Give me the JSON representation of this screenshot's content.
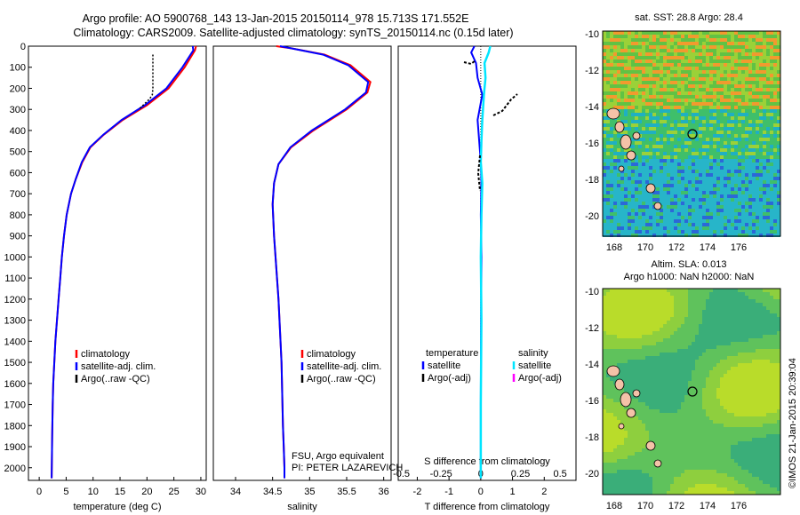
{
  "header": {
    "line1": "Argo profile: AO 5900768_143 13-Jan-2015 20150114_978 15.713S 171.552E",
    "line2": "Climatology: CARS2009. Satellite-adjusted climatology: synTS_20150114.nc (0.15d later)"
  },
  "depth_ticks": [
    "0",
    "100",
    "200",
    "300",
    "400",
    "500",
    "600",
    "700",
    "800",
    "900",
    "1000",
    "1100",
    "1200",
    "1300",
    "1400",
    "1500",
    "1600",
    "1700",
    "1800",
    "1900",
    "2000"
  ],
  "colors": {
    "climatology": "#ff0000",
    "satellite": "#0000ff",
    "argo": "#000000",
    "sal_satellite": "#00e5ff",
    "sal_argo": "#ff00ff"
  },
  "temp_panel": {
    "xlabel": "temperature (deg C)",
    "xticks": [
      "0",
      "5",
      "10",
      "15",
      "20",
      "25",
      "30"
    ],
    "legend": [
      "climatology",
      "satellite-adj. clim.",
      "Argo(..raw -QC)"
    ]
  },
  "sal_panel": {
    "xlabel": "salinity",
    "xticks": [
      "34",
      "34.5",
      "35",
      "35.5",
      "36"
    ],
    "legend": [
      "climatology",
      "satellite-adj. clim.",
      "Argo(..raw -QC)"
    ],
    "note1": "FSU, Argo equivalent",
    "note2": "PI: PETER LAZAREVICH"
  },
  "diff_panel": {
    "xlabel": "T difference from climatology",
    "s_label": "S difference from climatology",
    "xticks_t": [
      "-2",
      "-1",
      "0",
      "1",
      "2"
    ],
    "xticks_s": [
      "-0.5",
      "-0.25",
      "0",
      "0.25",
      "0.5"
    ],
    "legend_t_head": "temperature",
    "legend_t": [
      "satellite",
      "Argo(-adj)"
    ],
    "legend_s_head": "salinity",
    "legend_s": [
      "satellite",
      "Argo(-adj)"
    ]
  },
  "sst_map": {
    "title": "sat. SST: 28.8 Argo: 28.4",
    "xticks": [
      "168",
      "170",
      "172",
      "174",
      "176"
    ],
    "yticks": [
      "-10",
      "-12",
      "-14",
      "-16",
      "-18",
      "-20"
    ]
  },
  "sla_map": {
    "title1": "Altim. SLA: 0.013",
    "title2": "Argo h1000: NaN h2000: NaN",
    "xticks": [
      "168",
      "170",
      "172",
      "174",
      "176"
    ],
    "yticks": [
      "-10",
      "-12",
      "-14",
      "-16",
      "-18",
      "-20"
    ]
  },
  "credit": "©IMOS 21-Jan-2015 20:39:04",
  "chart_data": [
    {
      "type": "line",
      "xlabel": "temperature (deg C)",
      "xlim": [
        -2,
        31
      ],
      "ylim": [
        2060,
        0
      ],
      "series": [
        {
          "name": "climatology",
          "x": [
            29.1,
            28.9,
            27.0,
            24.0,
            20.0,
            15.5,
            12.0,
            9.5,
            8.0,
            6.8,
            5.9,
            5.1,
            4.6,
            4.2,
            3.9,
            3.6,
            3.3,
            3.0,
            2.8,
            2.6,
            2.5,
            2.4,
            2.3
          ],
          "y": [
            0,
            20,
            100,
            200,
            280,
            350,
            420,
            480,
            550,
            630,
            700,
            800,
            900,
            1000,
            1100,
            1200,
            1300,
            1400,
            1500,
            1600,
            1700,
            1850,
            2050
          ]
        },
        {
          "name": "satellite-adj. clim.",
          "x": [
            28.5,
            28.6,
            26.6,
            23.6,
            19.6,
            15.3,
            11.9,
            9.4,
            7.9,
            6.8,
            5.9,
            5.1,
            4.6,
            4.2,
            3.9,
            3.6,
            3.3,
            3.0,
            2.8,
            2.6,
            2.5,
            2.4,
            2.3
          ],
          "y": [
            0,
            20,
            100,
            200,
            280,
            350,
            420,
            480,
            550,
            630,
            700,
            800,
            900,
            1000,
            1100,
            1200,
            1300,
            1400,
            1500,
            1600,
            1700,
            1850,
            2050
          ]
        },
        {
          "name": "Argo(..raw -QC)",
          "x": [
            21.1,
            21.1,
            21.1,
            21.1,
            21.1,
            21.0,
            20.5,
            18.5
          ],
          "y": [
            40,
            80,
            120,
            160,
            200,
            230,
            250,
            300
          ]
        }
      ]
    },
    {
      "type": "line",
      "xlabel": "salinity",
      "xlim": [
        33.7,
        36.1
      ],
      "ylim": [
        2060,
        0
      ],
      "series": [
        {
          "name": "climatology",
          "x": [
            34.55,
            34.75,
            35.2,
            35.55,
            35.82,
            35.78,
            35.5,
            35.05,
            34.75,
            34.58,
            34.52,
            34.5,
            34.52,
            34.55,
            34.58,
            34.6,
            34.62,
            34.63,
            34.64,
            34.65,
            34.66,
            34.66
          ],
          "y": [
            0,
            10,
            40,
            90,
            170,
            220,
            300,
            400,
            480,
            560,
            650,
            750,
            900,
            1050,
            1200,
            1350,
            1500,
            1650,
            1800,
            1900,
            2000,
            2050
          ]
        },
        {
          "name": "satellite-adj. clim.",
          "x": [
            34.6,
            34.75,
            35.18,
            35.52,
            35.79,
            35.76,
            35.48,
            35.03,
            34.74,
            34.58,
            34.52,
            34.5,
            34.52,
            34.55,
            34.58,
            34.6,
            34.62,
            34.63,
            34.64,
            34.65,
            34.66,
            34.66
          ],
          "y": [
            0,
            10,
            40,
            90,
            170,
            220,
            300,
            400,
            480,
            560,
            650,
            750,
            900,
            1050,
            1200,
            1350,
            1500,
            1650,
            1800,
            1900,
            2000,
            2050
          ]
        }
      ]
    },
    {
      "type": "line",
      "xlabel": "T difference from climatology",
      "xlim": [
        -2.6,
        3.0
      ],
      "ylim": [
        2060,
        0
      ],
      "series": [
        {
          "name": "temperature satellite",
          "x": [
            -0.2,
            -0.3,
            -0.15,
            -0.1,
            0.05,
            -0.1,
            -0.05,
            0,
            0.02,
            0,
            0.02,
            0.01,
            0,
            0
          ],
          "y": [
            0,
            30,
            80,
            150,
            230,
            350,
            450,
            550,
            650,
            800,
            1000,
            1300,
            1700,
            2050
          ]
        },
        {
          "name": "salinity satellite",
          "x": [
            0.3,
            0.25,
            0.12,
            0.15,
            0.1,
            0.05,
            0.02,
            0.0,
            0.05,
            0.02,
            0.0,
            0.02,
            0,
            0
          ],
          "y": [
            0,
            30,
            80,
            150,
            230,
            350,
            450,
            550,
            650,
            800,
            1000,
            1300,
            1700,
            2050
          ]
        }
      ]
    }
  ]
}
